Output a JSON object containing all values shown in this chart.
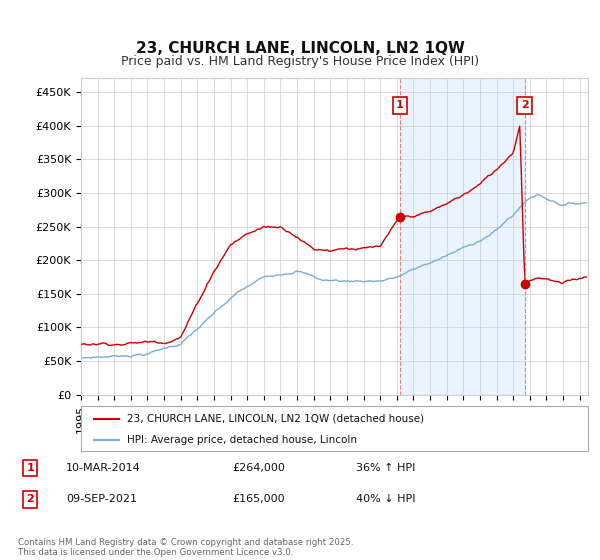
{
  "title": "23, CHURCH LANE, LINCOLN, LN2 1QW",
  "subtitle": "Price paid vs. HM Land Registry's House Price Index (HPI)",
  "ylabel_ticks": [
    "£0",
    "£50K",
    "£100K",
    "£150K",
    "£200K",
    "£250K",
    "£300K",
    "£350K",
    "£400K",
    "£450K"
  ],
  "ytick_values": [
    0,
    50000,
    100000,
    150000,
    200000,
    250000,
    300000,
    350000,
    400000,
    450000
  ],
  "ylim": [
    0,
    470000
  ],
  "xlim_start": 1995.0,
  "xlim_end": 2025.5,
  "red_line_color": "#cc0000",
  "blue_line_color": "#7aadd4",
  "dashed_line_color": "#e88080",
  "annotation_box_color": "#cc0000",
  "legend_label_red": "23, CHURCH LANE, LINCOLN, LN2 1QW (detached house)",
  "legend_label_blue": "HPI: Average price, detached house, Lincoln",
  "point1_label": "1",
  "point1_date": "10-MAR-2014",
  "point1_price": "£264,000",
  "point1_hpi": "36% ↑ HPI",
  "point1_x": 2014.19,
  "point1_y": 264000,
  "point2_label": "2",
  "point2_date": "09-SEP-2021",
  "point2_price": "£165,000",
  "point2_hpi": "40% ↓ HPI",
  "point2_x": 2021.69,
  "point2_y": 165000,
  "vline1_x": 2014.19,
  "vline2_x": 2021.69,
  "footer": "Contains HM Land Registry data © Crown copyright and database right 2025.\nThis data is licensed under the Open Government Licence v3.0.",
  "title_fontsize": 11,
  "subtitle_fontsize": 9,
  "tick_fontsize": 8,
  "legend_fontsize": 8,
  "background_color": "#ffffff",
  "shade_color": "#ddeeff"
}
